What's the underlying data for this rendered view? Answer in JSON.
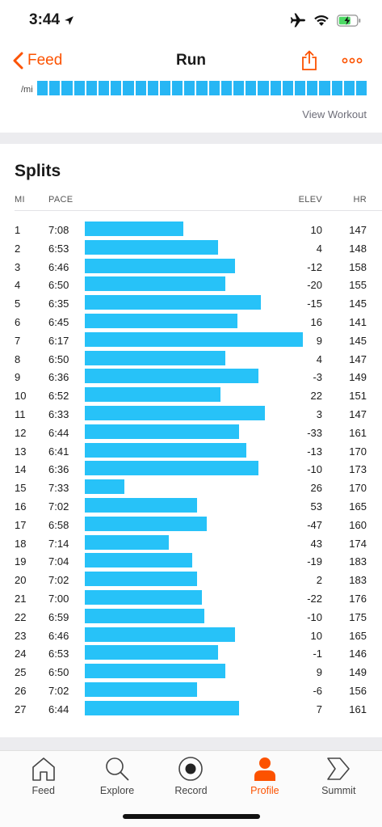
{
  "status_bar": {
    "time": "3:44",
    "icons": [
      "location-arrow-icon",
      "airplane-icon",
      "wifi-icon",
      "battery-charging-icon"
    ]
  },
  "nav": {
    "back_label": "Feed",
    "title": "Run",
    "actions": [
      "share-icon",
      "more-icon"
    ]
  },
  "pace_strip": {
    "unit_label": "/mi",
    "segments": 27
  },
  "view_workout_label": "View Workout",
  "splits": {
    "title": "Splits",
    "headers": {
      "mi": "MI",
      "pace": "PACE",
      "elev": "ELEV",
      "hr": "HR"
    },
    "rows": [
      {
        "mi": "1",
        "pace": "7:08",
        "elev": "10",
        "hr": "147"
      },
      {
        "mi": "2",
        "pace": "6:53",
        "elev": "4",
        "hr": "148"
      },
      {
        "mi": "3",
        "pace": "6:46",
        "elev": "-12",
        "hr": "158"
      },
      {
        "mi": "4",
        "pace": "6:50",
        "elev": "-20",
        "hr": "155"
      },
      {
        "mi": "5",
        "pace": "6:35",
        "elev": "-15",
        "hr": "145"
      },
      {
        "mi": "6",
        "pace": "6:45",
        "elev": "16",
        "hr": "141"
      },
      {
        "mi": "7",
        "pace": "6:17",
        "elev": "9",
        "hr": "145"
      },
      {
        "mi": "8",
        "pace": "6:50",
        "elev": "4",
        "hr": "147"
      },
      {
        "mi": "9",
        "pace": "6:36",
        "elev": "-3",
        "hr": "149"
      },
      {
        "mi": "10",
        "pace": "6:52",
        "elev": "22",
        "hr": "151"
      },
      {
        "mi": "11",
        "pace": "6:33",
        "elev": "3",
        "hr": "147"
      },
      {
        "mi": "12",
        "pace": "6:44",
        "elev": "-33",
        "hr": "161"
      },
      {
        "mi": "13",
        "pace": "6:41",
        "elev": "-13",
        "hr": "170"
      },
      {
        "mi": "14",
        "pace": "6:36",
        "elev": "-10",
        "hr": "173"
      },
      {
        "mi": "15",
        "pace": "7:33",
        "elev": "26",
        "hr": "170"
      },
      {
        "mi": "16",
        "pace": "7:02",
        "elev": "53",
        "hr": "165"
      },
      {
        "mi": "17",
        "pace": "6:58",
        "elev": "-47",
        "hr": "160"
      },
      {
        "mi": "18",
        "pace": "7:14",
        "elev": "43",
        "hr": "174"
      },
      {
        "mi": "19",
        "pace": "7:04",
        "elev": "-19",
        "hr": "183"
      },
      {
        "mi": "20",
        "pace": "7:02",
        "elev": "2",
        "hr": "183"
      },
      {
        "mi": "21",
        "pace": "7:00",
        "elev": "-22",
        "hr": "176"
      },
      {
        "mi": "22",
        "pace": "6:59",
        "elev": "-10",
        "hr": "175"
      },
      {
        "mi": "23",
        "pace": "6:46",
        "elev": "10",
        "hr": "165"
      },
      {
        "mi": "24",
        "pace": "6:53",
        "elev": "-1",
        "hr": "146"
      },
      {
        "mi": "25",
        "pace": "6:50",
        "elev": "9",
        "hr": "149"
      },
      {
        "mi": "26",
        "pace": "7:02",
        "elev": "-6",
        "hr": "156"
      },
      {
        "mi": "27",
        "pace": "6:44",
        "elev": "7",
        "hr": "161"
      }
    ]
  },
  "tabs": [
    {
      "label": "Feed",
      "icon": "home-icon",
      "active": false
    },
    {
      "label": "Explore",
      "icon": "search-icon",
      "active": false
    },
    {
      "label": "Record",
      "icon": "record-icon",
      "active": false
    },
    {
      "label": "Profile",
      "icon": "profile-icon",
      "active": true
    },
    {
      "label": "Summit",
      "icon": "summit-icon",
      "active": false
    }
  ],
  "colors": {
    "accent": "#fc5200",
    "bar": "#27c2f8"
  }
}
